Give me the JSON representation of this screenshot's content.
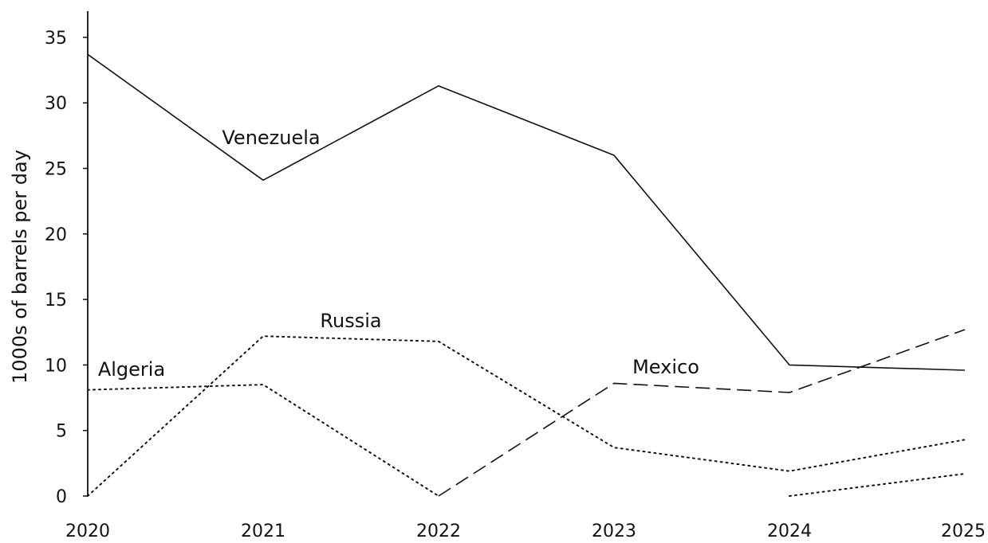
{
  "chart_data": {
    "type": "line",
    "title": "",
    "xlabel": "",
    "ylabel": "1000s of barrels per day",
    "x": [
      "2020",
      "2021",
      "2022",
      "2023",
      "2024",
      "2025"
    ],
    "ylim": [
      0,
      37
    ],
    "yticks": [
      0,
      5,
      10,
      15,
      20,
      25,
      30,
      35
    ],
    "grid": false,
    "legend": "none (series labelled directly on chart)",
    "series": [
      {
        "name": "Venezuela",
        "style": "solid",
        "values": [
          33.7,
          24.1,
          31.3,
          26.0,
          10.0,
          9.6
        ]
      },
      {
        "name": "Russia",
        "style": "dotted",
        "values": [
          0.0,
          12.2,
          11.8,
          3.7,
          1.9,
          4.3
        ]
      },
      {
        "name": "Algeria",
        "style": "dotted",
        "values": [
          8.1,
          8.5,
          0.0,
          null,
          0.0,
          1.7
        ]
      },
      {
        "name": "Mexico",
        "style": "dashed",
        "values": [
          null,
          null,
          0.0,
          8.6,
          7.9,
          12.7
        ]
      }
    ],
    "color": "#111111"
  }
}
